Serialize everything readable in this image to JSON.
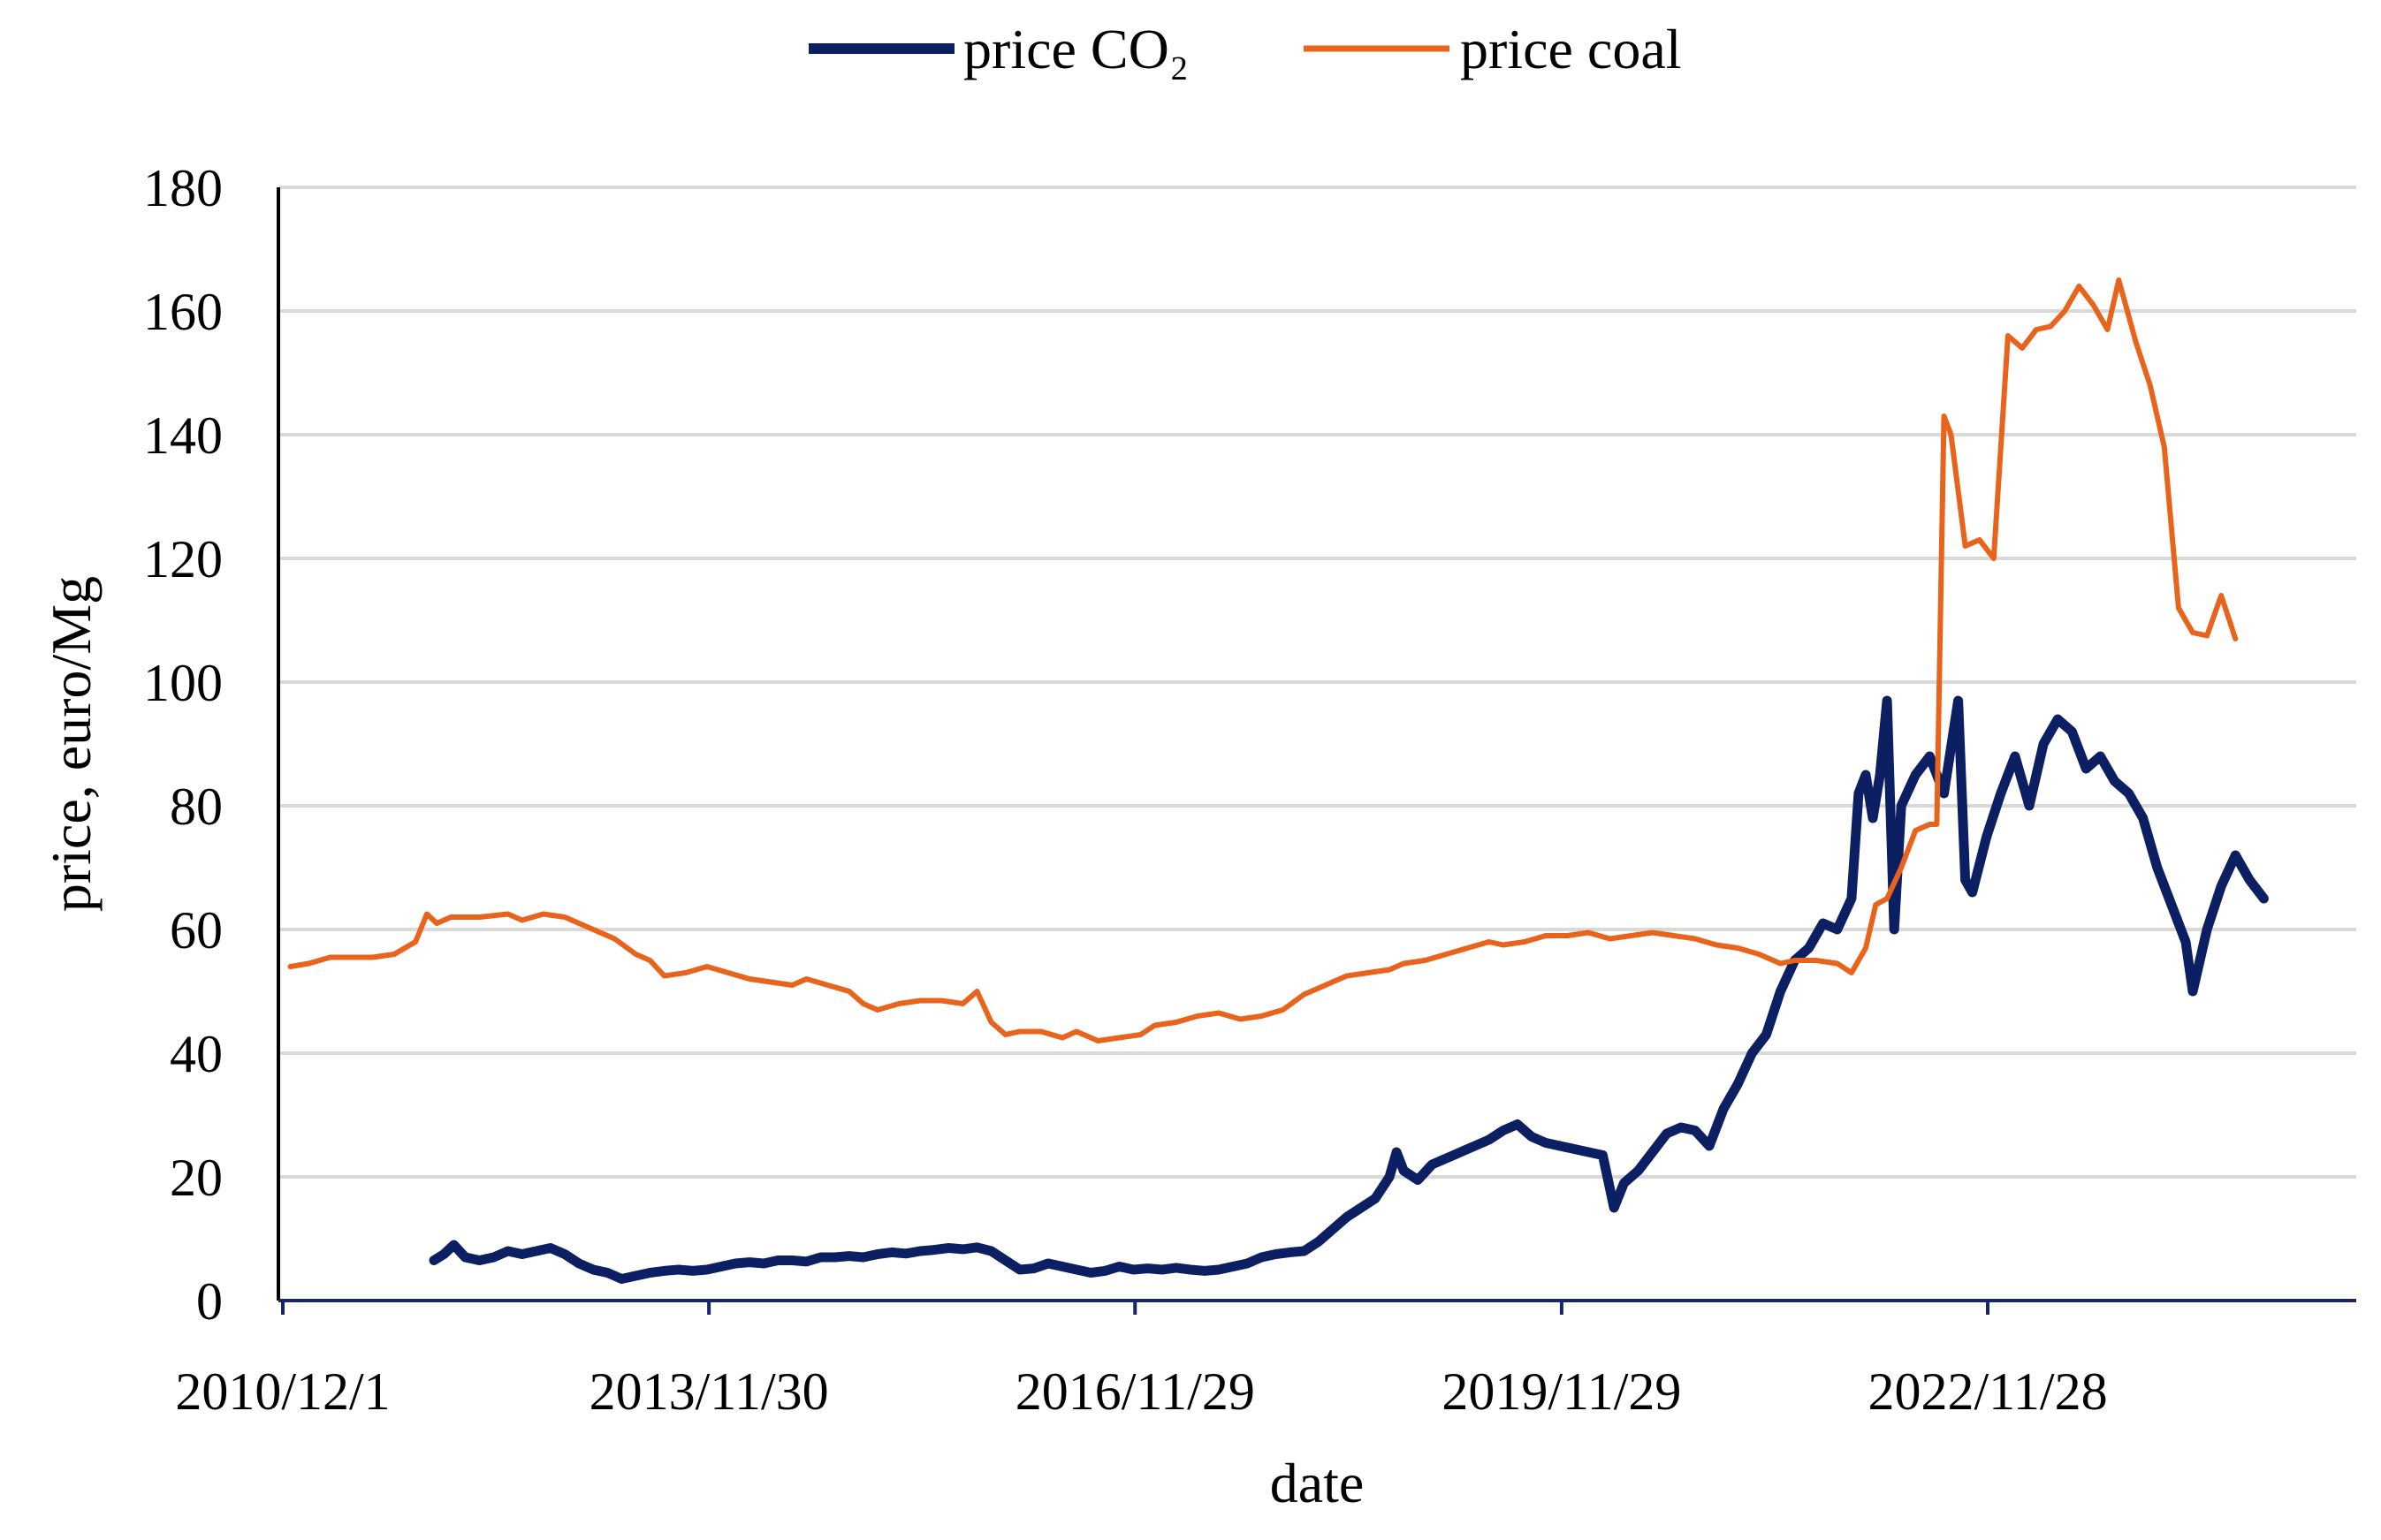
{
  "chart_data": {
    "type": "line",
    "title": "",
    "xlabel": "date",
    "ylabel": "price, euro/Mg",
    "ylim": [
      0,
      180
    ],
    "yticks": [
      0,
      20,
      40,
      60,
      80,
      100,
      120,
      140,
      160,
      180
    ],
    "xlim": [
      2010.917,
      2025.5
    ],
    "xticks": [
      {
        "label": "2010/12/1",
        "value": 2010.917
      },
      {
        "label": "2013/11/30",
        "value": 2013.914
      },
      {
        "label": "2016/11/29",
        "value": 2016.911
      },
      {
        "label": "2019/11/29",
        "value": 2019.911
      },
      {
        "label": "2022/11/28",
        "value": 2022.908
      }
    ],
    "grid": true,
    "legend_position": "top-center",
    "series": [
      {
        "name": "price CO₂",
        "color": "#0D1F63",
        "points": [
          [
            2011.98,
            6.5
          ],
          [
            2012.05,
            7.5
          ],
          [
            2012.12,
            9.0
          ],
          [
            2012.2,
            7.0
          ],
          [
            2012.3,
            6.5
          ],
          [
            2012.4,
            7.0
          ],
          [
            2012.5,
            8.0
          ],
          [
            2012.6,
            7.5
          ],
          [
            2012.7,
            8.0
          ],
          [
            2012.8,
            8.5
          ],
          [
            2012.9,
            7.5
          ],
          [
            2013.0,
            6.0
          ],
          [
            2013.1,
            5.0
          ],
          [
            2013.2,
            4.5
          ],
          [
            2013.3,
            3.5
          ],
          [
            2013.4,
            4.0
          ],
          [
            2013.5,
            4.5
          ],
          [
            2013.6,
            4.8
          ],
          [
            2013.7,
            5.0
          ],
          [
            2013.8,
            4.8
          ],
          [
            2013.9,
            5.0
          ],
          [
            2014.0,
            5.5
          ],
          [
            2014.1,
            6.0
          ],
          [
            2014.2,
            6.2
          ],
          [
            2014.3,
            6.0
          ],
          [
            2014.4,
            6.5
          ],
          [
            2014.5,
            6.5
          ],
          [
            2014.6,
            6.3
          ],
          [
            2014.7,
            7.0
          ],
          [
            2014.8,
            7.0
          ],
          [
            2014.9,
            7.2
          ],
          [
            2015.0,
            7.0
          ],
          [
            2015.1,
            7.5
          ],
          [
            2015.2,
            7.8
          ],
          [
            2015.3,
            7.6
          ],
          [
            2015.4,
            8.0
          ],
          [
            2015.5,
            8.2
          ],
          [
            2015.6,
            8.5
          ],
          [
            2015.7,
            8.3
          ],
          [
            2015.8,
            8.6
          ],
          [
            2015.9,
            8.0
          ],
          [
            2016.0,
            6.5
          ],
          [
            2016.1,
            5.0
          ],
          [
            2016.2,
            5.2
          ],
          [
            2016.3,
            6.0
          ],
          [
            2016.4,
            5.5
          ],
          [
            2016.5,
            5.0
          ],
          [
            2016.6,
            4.5
          ],
          [
            2016.7,
            4.8
          ],
          [
            2016.8,
            5.5
          ],
          [
            2016.9,
            5.0
          ],
          [
            2017.0,
            5.2
          ],
          [
            2017.1,
            5.0
          ],
          [
            2017.2,
            5.3
          ],
          [
            2017.3,
            5.0
          ],
          [
            2017.4,
            4.8
          ],
          [
            2017.5,
            5.0
          ],
          [
            2017.6,
            5.5
          ],
          [
            2017.7,
            6.0
          ],
          [
            2017.8,
            7.0
          ],
          [
            2017.9,
            7.5
          ],
          [
            2018.0,
            7.8
          ],
          [
            2018.1,
            8.0
          ],
          [
            2018.2,
            9.5
          ],
          [
            2018.3,
            11.5
          ],
          [
            2018.4,
            13.5
          ],
          [
            2018.5,
            15.0
          ],
          [
            2018.6,
            16.5
          ],
          [
            2018.7,
            20.0
          ],
          [
            2018.75,
            24.0
          ],
          [
            2018.8,
            21.0
          ],
          [
            2018.9,
            19.5
          ],
          [
            2019.0,
            22.0
          ],
          [
            2019.1,
            23.0
          ],
          [
            2019.2,
            24.0
          ],
          [
            2019.3,
            25.0
          ],
          [
            2019.4,
            26.0
          ],
          [
            2019.5,
            27.5
          ],
          [
            2019.6,
            28.5
          ],
          [
            2019.7,
            26.5
          ],
          [
            2019.8,
            25.5
          ],
          [
            2019.9,
            25.0
          ],
          [
            2020.0,
            24.5
          ],
          [
            2020.1,
            24.0
          ],
          [
            2020.2,
            23.5
          ],
          [
            2020.28,
            15.0
          ],
          [
            2020.35,
            19.0
          ],
          [
            2020.45,
            21.0
          ],
          [
            2020.55,
            24.0
          ],
          [
            2020.65,
            27.0
          ],
          [
            2020.75,
            28.0
          ],
          [
            2020.85,
            27.5
          ],
          [
            2020.95,
            25.0
          ],
          [
            2021.05,
            31.0
          ],
          [
            2021.15,
            35.0
          ],
          [
            2021.25,
            40.0
          ],
          [
            2021.35,
            43.0
          ],
          [
            2021.45,
            50.0
          ],
          [
            2021.55,
            55.0
          ],
          [
            2021.65,
            57.0
          ],
          [
            2021.75,
            61.0
          ],
          [
            2021.85,
            60.0
          ],
          [
            2021.95,
            65.0
          ],
          [
            2022.0,
            82.0
          ],
          [
            2022.05,
            85.0
          ],
          [
            2022.1,
            78.0
          ],
          [
            2022.15,
            85.0
          ],
          [
            2022.2,
            97.0
          ],
          [
            2022.25,
            60.0
          ],
          [
            2022.3,
            80.0
          ],
          [
            2022.4,
            85.0
          ],
          [
            2022.5,
            88.0
          ],
          [
            2022.6,
            82.0
          ],
          [
            2022.7,
            97.0
          ],
          [
            2022.75,
            68.0
          ],
          [
            2022.8,
            66.0
          ],
          [
            2022.9,
            75.0
          ],
          [
            2023.0,
            82.0
          ],
          [
            2023.1,
            88.0
          ],
          [
            2023.2,
            80.0
          ],
          [
            2023.3,
            90.0
          ],
          [
            2023.4,
            94.0
          ],
          [
            2023.5,
            92.0
          ],
          [
            2023.6,
            86.0
          ],
          [
            2023.7,
            88.0
          ],
          [
            2023.8,
            84.0
          ],
          [
            2023.9,
            82.0
          ],
          [
            2024.0,
            78.0
          ],
          [
            2024.1,
            70.0
          ],
          [
            2024.2,
            64.0
          ],
          [
            2024.3,
            58.0
          ],
          [
            2024.35,
            50.0
          ],
          [
            2024.45,
            60.0
          ],
          [
            2024.55,
            67.0
          ],
          [
            2024.65,
            72.0
          ],
          [
            2024.75,
            68.0
          ],
          [
            2024.85,
            65.0
          ]
        ]
      },
      {
        "name": "price coal",
        "color": "#E8631C",
        "points": [
          [
            2010.97,
            54.0
          ],
          [
            2011.1,
            54.5
          ],
          [
            2011.25,
            55.5
          ],
          [
            2011.4,
            55.5
          ],
          [
            2011.55,
            55.5
          ],
          [
            2011.7,
            56.0
          ],
          [
            2011.85,
            58.0
          ],
          [
            2011.93,
            62.5
          ],
          [
            2012.0,
            61.0
          ],
          [
            2012.1,
            62.0
          ],
          [
            2012.3,
            62.0
          ],
          [
            2012.5,
            62.5
          ],
          [
            2012.6,
            61.5
          ],
          [
            2012.75,
            62.5
          ],
          [
            2012.9,
            62.0
          ],
          [
            2013.0,
            61.0
          ],
          [
            2013.1,
            60.0
          ],
          [
            2013.25,
            58.5
          ],
          [
            2013.4,
            56.0
          ],
          [
            2013.5,
            55.0
          ],
          [
            2013.6,
            52.5
          ],
          [
            2013.75,
            53.0
          ],
          [
            2013.9,
            54.0
          ],
          [
            2014.05,
            53.0
          ],
          [
            2014.2,
            52.0
          ],
          [
            2014.35,
            51.5
          ],
          [
            2014.5,
            51.0
          ],
          [
            2014.6,
            52.0
          ],
          [
            2014.75,
            51.0
          ],
          [
            2014.9,
            50.0
          ],
          [
            2015.0,
            48.0
          ],
          [
            2015.1,
            47.0
          ],
          [
            2015.25,
            48.0
          ],
          [
            2015.4,
            48.5
          ],
          [
            2015.55,
            48.5
          ],
          [
            2015.7,
            48.0
          ],
          [
            2015.8,
            50.0
          ],
          [
            2015.9,
            45.0
          ],
          [
            2016.0,
            43.0
          ],
          [
            2016.1,
            43.5
          ],
          [
            2016.25,
            43.5
          ],
          [
            2016.4,
            42.5
          ],
          [
            2016.5,
            43.5
          ],
          [
            2016.65,
            42.0
          ],
          [
            2016.8,
            42.5
          ],
          [
            2016.95,
            43.0
          ],
          [
            2017.05,
            44.5
          ],
          [
            2017.2,
            45.0
          ],
          [
            2017.35,
            46.0
          ],
          [
            2017.5,
            46.5
          ],
          [
            2017.65,
            45.5
          ],
          [
            2017.8,
            46.0
          ],
          [
            2017.95,
            47.0
          ],
          [
            2018.1,
            49.5
          ],
          [
            2018.25,
            51.0
          ],
          [
            2018.4,
            52.5
          ],
          [
            2018.55,
            53.0
          ],
          [
            2018.7,
            53.5
          ],
          [
            2018.8,
            54.5
          ],
          [
            2018.95,
            55.0
          ],
          [
            2019.1,
            56.0
          ],
          [
            2019.25,
            57.0
          ],
          [
            2019.4,
            58.0
          ],
          [
            2019.5,
            57.5
          ],
          [
            2019.65,
            58.0
          ],
          [
            2019.8,
            59.0
          ],
          [
            2019.95,
            59.0
          ],
          [
            2020.1,
            59.5
          ],
          [
            2020.25,
            58.5
          ],
          [
            2020.4,
            59.0
          ],
          [
            2020.55,
            59.5
          ],
          [
            2020.7,
            59.0
          ],
          [
            2020.85,
            58.5
          ],
          [
            2021.0,
            57.5
          ],
          [
            2021.15,
            57.0
          ],
          [
            2021.3,
            56.0
          ],
          [
            2021.45,
            54.5
          ],
          [
            2021.55,
            55.0
          ],
          [
            2021.7,
            55.0
          ],
          [
            2021.85,
            54.5
          ],
          [
            2021.95,
            53.0
          ],
          [
            2022.05,
            57.0
          ],
          [
            2022.12,
            64.0
          ],
          [
            2022.2,
            65.0
          ],
          [
            2022.3,
            70.0
          ],
          [
            2022.4,
            76.0
          ],
          [
            2022.5,
            77.0
          ],
          [
            2022.55,
            77.0
          ],
          [
            2022.6,
            143.0
          ],
          [
            2022.65,
            140.0
          ],
          [
            2022.75,
            122.0
          ],
          [
            2022.85,
            123.0
          ],
          [
            2022.95,
            120.0
          ],
          [
            2023.05,
            156.0
          ],
          [
            2023.15,
            154.0
          ],
          [
            2023.25,
            157.0
          ],
          [
            2023.35,
            157.5
          ],
          [
            2023.45,
            160.0
          ],
          [
            2023.55,
            164.0
          ],
          [
            2023.65,
            161.0
          ],
          [
            2023.75,
            157.0
          ],
          [
            2023.83,
            165.0
          ],
          [
            2023.95,
            155.0
          ],
          [
            2024.05,
            148.0
          ],
          [
            2024.15,
            138.0
          ],
          [
            2024.25,
            112.0
          ],
          [
            2024.35,
            108.0
          ],
          [
            2024.45,
            107.5
          ],
          [
            2024.55,
            114.0
          ],
          [
            2024.65,
            107.0
          ]
        ]
      }
    ]
  }
}
